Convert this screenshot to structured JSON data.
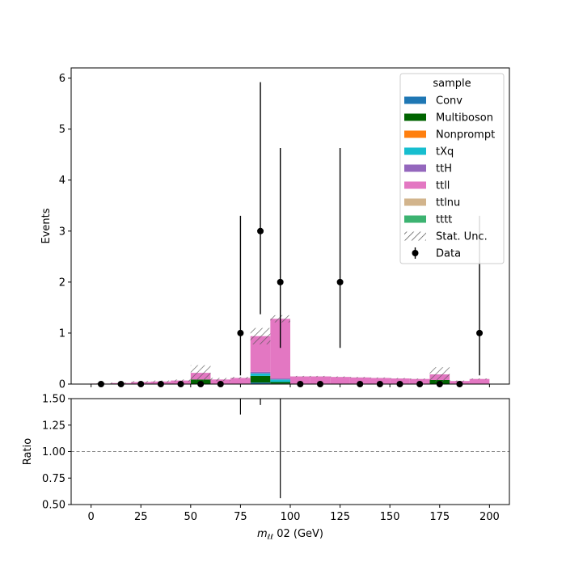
{
  "chart_data": {
    "type": "bar",
    "x_edges": [
      0,
      10,
      20,
      30,
      40,
      50,
      60,
      70,
      80,
      90,
      100,
      110,
      120,
      130,
      140,
      150,
      160,
      170,
      180,
      190,
      200
    ],
    "xlabel_prefix": "m",
    "xlabel_sub": "ℓℓ",
    "xlabel_suffix": " 02 (GeV)",
    "ylabel": "Events",
    "ylim": [
      0,
      6.2
    ],
    "xlim": [
      -10,
      210
    ],
    "x_ticks": [
      0,
      25,
      50,
      75,
      100,
      125,
      150,
      175,
      200
    ],
    "y_ticks": [
      0,
      1,
      2,
      3,
      4,
      5,
      6
    ],
    "legend_title": "sample",
    "legend_position": "top-right",
    "series": [
      {
        "name": "Conv",
        "color": "#1f77b4",
        "values": [
          0,
          0,
          0,
          0,
          0,
          0,
          0,
          0,
          0.03,
          0.01,
          0,
          0,
          0,
          0,
          0,
          0,
          0,
          0,
          0,
          0
        ]
      },
      {
        "name": "Multiboson",
        "color": "#006400",
        "values": [
          0,
          0,
          0,
          0,
          0,
          0.09,
          0,
          0,
          0.13,
          0.03,
          0,
          0,
          0,
          0,
          0,
          0,
          0,
          0.08,
          0,
          0
        ]
      },
      {
        "name": "Nonprompt",
        "color": "#ff7f0e",
        "values": [
          0,
          0,
          0,
          0,
          0,
          0,
          0,
          0,
          0,
          0,
          0,
          0,
          0,
          0,
          0,
          0,
          0,
          0,
          0,
          0
        ]
      },
      {
        "name": "tXq",
        "color": "#17becf",
        "values": [
          0,
          0,
          0,
          0,
          0,
          0,
          0,
          0,
          0.05,
          0.05,
          0,
          0,
          0,
          0,
          0,
          0,
          0,
          0,
          0,
          0
        ]
      },
      {
        "name": "ttH",
        "color": "#9467bd",
        "values": [
          0,
          0,
          0,
          0,
          0,
          0,
          0,
          0,
          0.03,
          0.02,
          0,
          0,
          0,
          0,
          0,
          0,
          0,
          0,
          0,
          0
        ]
      },
      {
        "name": "ttll",
        "color": "#e377c2",
        "values": [
          0.01,
          0.02,
          0.04,
          0.05,
          0.07,
          0.13,
          0.09,
          0.12,
          0.7,
          1.17,
          0.15,
          0.15,
          0.14,
          0.13,
          0.12,
          0.11,
          0.1,
          0.11,
          0.06,
          0.1
        ]
      },
      {
        "name": "ttlnu",
        "color": "#d2b48c",
        "values": [
          0,
          0,
          0,
          0,
          0,
          0,
          0,
          0,
          0,
          0,
          0,
          0,
          0,
          0,
          0,
          0,
          0,
          0,
          0,
          0
        ]
      },
      {
        "name": "tttt",
        "color": "#3cb371",
        "values": [
          0,
          0,
          0,
          0,
          0,
          0,
          0,
          0,
          0,
          0,
          0,
          0,
          0,
          0,
          0,
          0,
          0,
          0,
          0,
          0
        ]
      }
    ],
    "stat_unc": [
      0.01,
      0.01,
      0.02,
      0.02,
      0.02,
      0.15,
      0.03,
      0.02,
      0.16,
      0.07,
      0.01,
      0.01,
      0.01,
      0.01,
      0.01,
      0.01,
      0.01,
      0.14,
      0.01,
      0.01
    ],
    "stat_unc_label": "Stat. Unc.",
    "data_label": "Data",
    "data_color": "#000000",
    "data": {
      "x": [
        5,
        15,
        25,
        35,
        45,
        55,
        65,
        75,
        85,
        95,
        105,
        115,
        125,
        135,
        145,
        155,
        165,
        175,
        185,
        195
      ],
      "y": [
        0,
        0,
        0,
        0,
        0,
        0,
        0,
        1,
        3,
        2,
        0,
        0,
        2,
        0,
        0,
        0,
        0,
        0,
        0,
        1
      ],
      "err_lo": [
        0,
        0,
        0,
        0,
        0,
        0,
        0,
        0.83,
        1.63,
        1.29,
        0,
        0,
        1.29,
        0,
        0,
        0,
        0,
        0,
        0,
        0.83
      ],
      "err_hi": [
        0,
        0,
        0,
        0,
        0,
        0,
        0,
        2.3,
        2.92,
        2.63,
        0,
        0,
        2.63,
        0,
        0,
        0,
        0,
        0,
        0,
        2.3
      ]
    },
    "ratio": {
      "ylabel": "Ratio",
      "ylim": [
        0.5,
        1.5
      ],
      "y_ticks": [
        "0.50",
        "0.75",
        "1.00",
        "1.25",
        "1.50"
      ],
      "reference": 1.0,
      "reference_color": "#808080",
      "segments": [
        {
          "x": 75,
          "lo": 1.35,
          "hi": 1.5
        },
        {
          "x": 85,
          "lo": 1.44,
          "hi": 1.5
        },
        {
          "x": 95,
          "lo": 0.56,
          "hi": 1.5
        }
      ]
    }
  }
}
